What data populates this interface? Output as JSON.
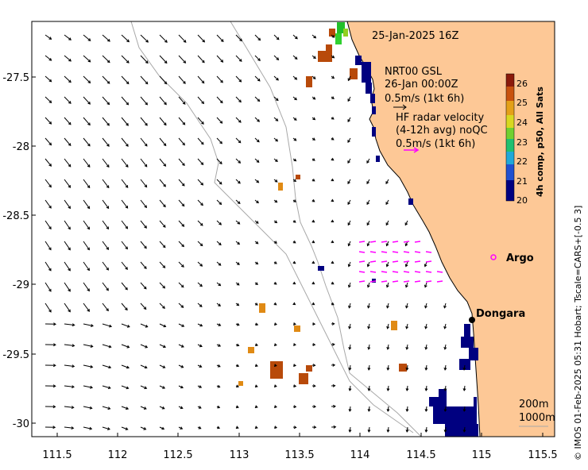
{
  "title": {
    "date": "25-Jan-2025 16Z"
  },
  "model": {
    "name": "NRT00 GSL",
    "time": "26-Jan 00:00Z",
    "scale": "0.5m/s (1kt 6h)"
  },
  "hf_radar": {
    "line1": "HF radar velocity",
    "line2": "(4-12h avg) noQC",
    "scale": "0.5m/s (1kt 6h)"
  },
  "places": {
    "argo": "Argo",
    "dongara": "Dongara"
  },
  "isobaths": {
    "shallow": "200m",
    "deep": "1000m"
  },
  "colorbar": {
    "title": "4h comp, p50, All Sats",
    "ticks": [
      "26",
      "25",
      "24",
      "23",
      "22",
      "21",
      "20"
    ]
  },
  "axes": {
    "x_ticks": [
      "111.5",
      "112",
      "112.5",
      "113",
      "113.5",
      "114",
      "114.5",
      "115",
      "115.5"
    ],
    "y_ticks": [
      "-27.5",
      "-28",
      "-28.5",
      "-29",
      "-29.5",
      "-30"
    ]
  },
  "credit": "© IMOS 01-Feb-2025 05:31 Hobart; Tscale=CARS+[-0.5 3]",
  "colors": {
    "land": "#fdc896",
    "sst_cold": "#000080",
    "sst_warm": "#b84a0a",
    "hf": "#ff00ff"
  }
}
